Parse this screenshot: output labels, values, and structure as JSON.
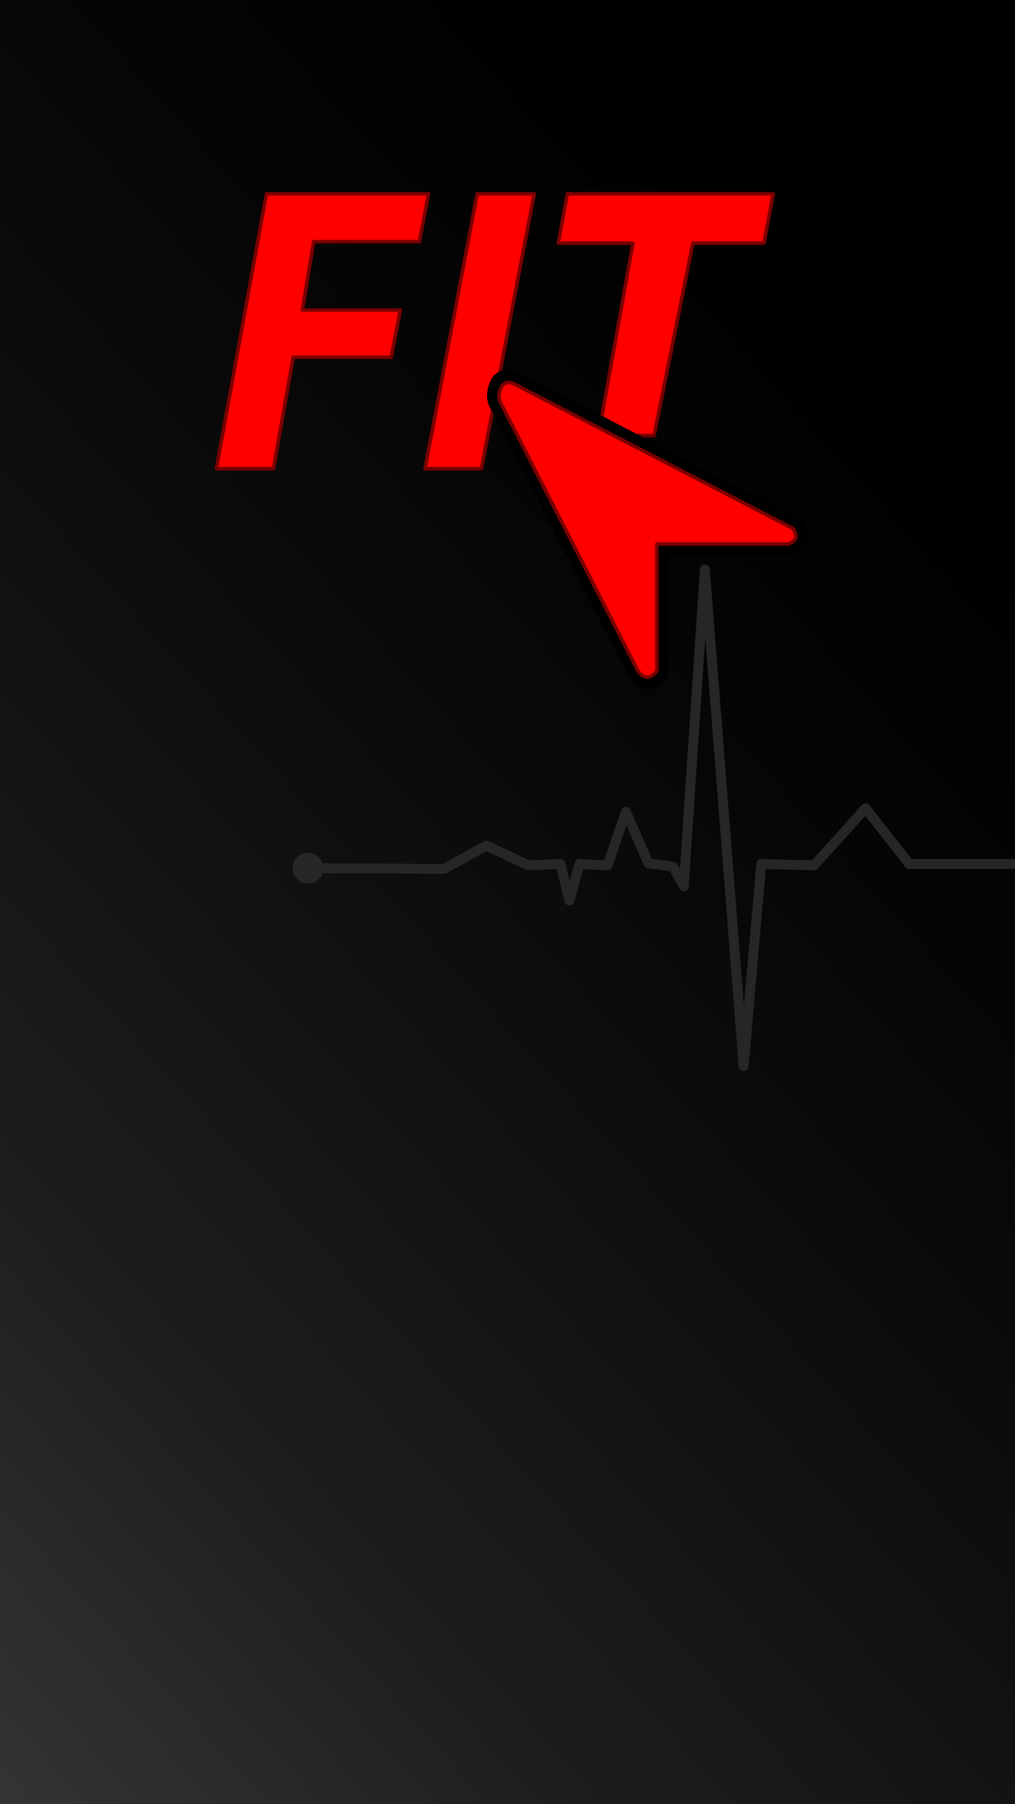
{
  "app": {
    "logo_text": "FIT"
  },
  "colors": {
    "brand_red": "#ff0000",
    "brand_red_edge": "#7a0000",
    "heartbeat_line": "#262626",
    "background_light": "#343434",
    "background_dark": "#000000"
  },
  "icons": {
    "cursor": "cursor-arrow-icon",
    "heartbeat": "heartbeat-line-icon"
  }
}
